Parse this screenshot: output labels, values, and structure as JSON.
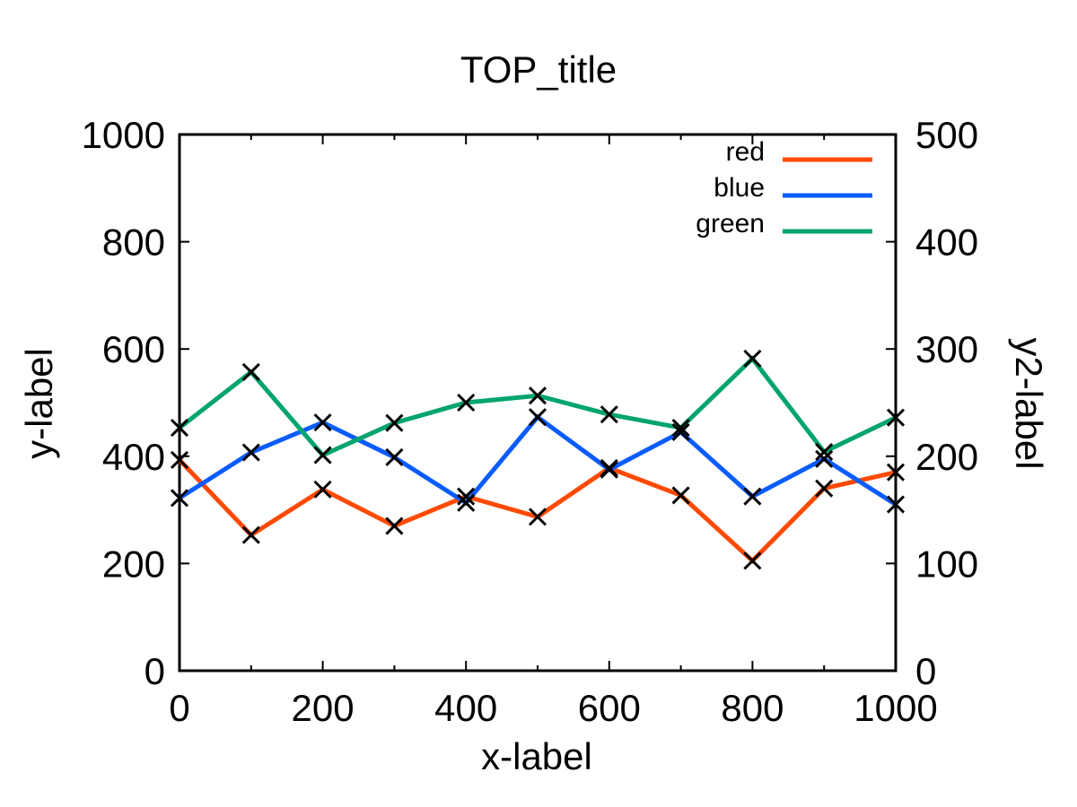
{
  "chart_data": {
    "type": "line",
    "title": "TOP_title",
    "xlabel": "x-label",
    "ylabel": "y-label",
    "y2label": "y2-label",
    "xlim": [
      0,
      1000
    ],
    "ylim": [
      0,
      1000
    ],
    "y2lim": [
      0,
      500
    ],
    "xticks": [
      "0",
      "200",
      "400",
      "600",
      "800",
      "1000"
    ],
    "xtick_values": [
      0,
      200,
      400,
      600,
      800,
      1000
    ],
    "yticks": [
      "0",
      "200",
      "400",
      "600",
      "800",
      "1000"
    ],
    "ytick_values": [
      0,
      200,
      400,
      600,
      800,
      1000
    ],
    "y2ticks": [
      "0",
      "100",
      "200",
      "300",
      "400",
      "500"
    ],
    "y2tick_values": [
      0,
      100,
      200,
      300,
      400,
      500
    ],
    "grid": false,
    "legend": "top-right",
    "marker": "x",
    "x": [
      0,
      100,
      200,
      300,
      400,
      500,
      600,
      700,
      800,
      900,
      1000
    ],
    "series": [
      {
        "name": "red",
        "color": "#ff4a00",
        "values": [
          393,
          253,
          338,
          270,
          325,
          287,
          378,
          327,
          205,
          340,
          370
        ]
      },
      {
        "name": "blue",
        "color": "#0a5cff",
        "values": [
          322,
          407,
          463,
          398,
          313,
          473,
          375,
          445,
          325,
          395,
          310
        ]
      },
      {
        "name": "green",
        "color": "#00a46e",
        "values": [
          453,
          557,
          402,
          462,
          500,
          513,
          478,
          453,
          582,
          408,
          472
        ]
      }
    ]
  }
}
